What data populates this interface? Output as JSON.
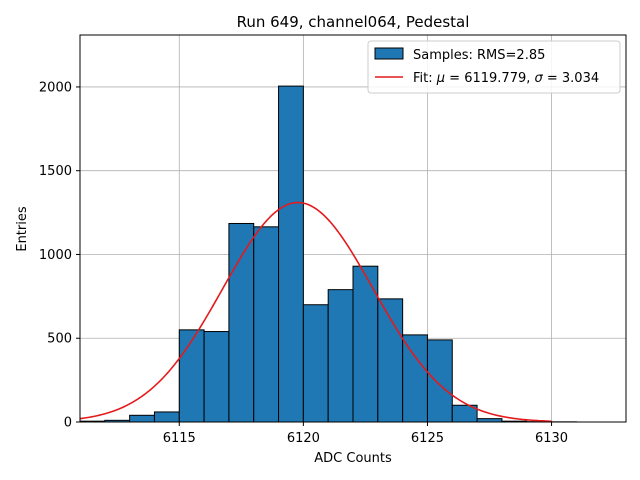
{
  "chart_data": {
    "type": "bar",
    "title": "Run 649, channel064, Pedestal",
    "xlabel": "ADC Counts",
    "ylabel": "Entries",
    "xlim": [
      6111,
      6133
    ],
    "ylim": [
      0,
      2310
    ],
    "xticks": [
      6115,
      6120,
      6125,
      6130
    ],
    "yticks": [
      0,
      500,
      1000,
      1500,
      2000
    ],
    "grid": true,
    "legend_position": "top-right",
    "bar_color": "#1f77b4",
    "fit_color": "#e41a1c",
    "legend": {
      "samples": "Samples: RMS=2.85",
      "fit_prefix": "Fit: ",
      "mu_symbol": "μ",
      "fit_mid": " = 6119.779, ",
      "sigma_symbol": "σ",
      "fit_suffix": " = 3.034"
    },
    "bins": {
      "edges": [
        6111,
        6112,
        6113,
        6114,
        6115,
        6116,
        6117,
        6118,
        6119,
        6120,
        6121,
        6122,
        6123,
        6124,
        6125,
        6126,
        6127,
        6128,
        6129,
        6130,
        6131,
        6132
      ],
      "counts": [
        5,
        10,
        40,
        60,
        550,
        540,
        1185,
        1165,
        2005,
        700,
        790,
        930,
        735,
        520,
        490,
        100,
        20,
        5,
        2,
        1,
        0
      ]
    },
    "fit": {
      "mu": 6119.779,
      "sigma": 3.034,
      "peak": 1310,
      "x_range": [
        6111,
        6130
      ]
    }
  }
}
